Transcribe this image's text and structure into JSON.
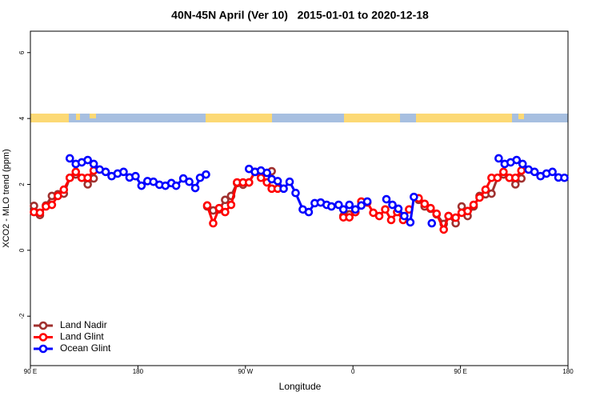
{
  "chart_data": {
    "type": "line",
    "title": "40N-45N April (Ver 10)   2015-01-01 to 2020-12-18",
    "x_label": "Longitude",
    "y_label": "XCO2 - MLO trend (ppm)",
    "xlim": [
      90,
      540
    ],
    "ylim": [
      -3.5,
      6.65
    ],
    "xticks": [
      {
        "value": 90,
        "label": "90 E"
      },
      180,
      {
        "value": 270,
        "label": "90 W"
      },
      {
        "value": 360,
        "label": "0"
      },
      {
        "value": 450,
        "label": "90 E"
      },
      {
        "value": 540,
        "label": "180"
      }
    ],
    "yticks": [
      -2,
      0,
      2,
      4,
      6
    ],
    "legend": "bottom-left",
    "series": [
      {
        "name": "Land Nadir",
        "color": "#a0312f",
        "x": [
          93,
          98,
          103,
          108,
          113,
          118,
          123,
          128,
          133,
          138,
          143,
          null,
          238,
          243,
          248,
          253,
          258,
          263,
          268,
          273,
          278,
          283,
          288,
          292,
          null,
          352,
          357,
          362,
          367,
          null,
          415,
          420,
          425,
          430,
          436,
          440,
          446,
          451,
          456,
          461,
          466,
          471,
          476,
          481,
          486,
          491,
          496,
          501
        ],
        "values": [
          1.35,
          1.07,
          1.36,
          1.65,
          1.7,
          1.72,
          2.2,
          2.3,
          2.2,
          2.0,
          2.18,
          null,
          1.33,
          1.21,
          1.24,
          1.53,
          1.65,
          2.04,
          1.99,
          2.06,
          2.38,
          2.3,
          2.2,
          2.4,
          null,
          1.04,
          1.09,
          1.16,
          1.38,
          null,
          1.53,
          1.33,
          1.26,
          1.09,
          0.8,
          1.04,
          0.82,
          1.33,
          1.04,
          1.33,
          1.65,
          1.7,
          1.72,
          2.2,
          2.3,
          2.2,
          2.0,
          2.18
        ]
      },
      {
        "name": "Land Glint",
        "color": "#ff0000",
        "x": [
          93,
          98,
          103,
          108,
          113,
          118,
          123,
          128,
          133,
          138,
          143,
          null,
          238,
          243,
          248,
          253,
          258,
          263,
          268,
          273,
          278,
          283,
          288,
          292,
          297,
          null,
          352,
          357,
          362,
          367,
          372,
          377,
          382,
          387,
          392,
          397,
          402,
          407,
          null,
          415,
          420,
          425,
          430,
          436,
          440,
          446,
          451,
          456,
          461,
          466,
          471,
          476,
          481,
          486,
          491,
          496,
          501
        ],
        "values": [
          1.16,
          1.14,
          1.33,
          1.38,
          1.65,
          1.84,
          2.2,
          2.38,
          2.2,
          2.2,
          2.42,
          null,
          1.36,
          0.82,
          1.28,
          1.16,
          1.38,
          2.06,
          2.06,
          2.06,
          2.38,
          2.2,
          2.06,
          1.87,
          1.87,
          null,
          1.0,
          1.0,
          1.16,
          1.48,
          1.45,
          1.14,
          1.04,
          1.24,
          0.92,
          1.16,
          0.92,
          1.24,
          null,
          1.58,
          1.41,
          1.28,
          1.11,
          0.63,
          1.04,
          0.99,
          1.14,
          1.19,
          1.38,
          1.6,
          1.84,
          2.2,
          2.2,
          2.38,
          2.2,
          2.2,
          2.42
        ]
      },
      {
        "name": "Ocean Glint",
        "color": "#0000ff",
        "x": [
          123,
          128,
          133,
          138,
          143,
          148,
          153,
          158,
          163,
          168,
          173,
          178,
          183,
          188,
          193,
          198,
          203,
          208,
          212,
          218,
          223,
          228,
          232,
          237,
          null,
          273,
          278,
          283,
          288,
          292,
          297,
          302,
          307,
          312,
          318,
          323,
          328,
          333,
          338,
          342,
          348,
          352,
          357,
          362,
          367,
          372,
          null,
          388,
          393,
          398,
          403,
          408,
          411,
          null,
          426,
          null,
          482,
          487,
          492,
          497,
          502,
          507,
          512,
          517,
          522,
          527,
          532,
          537
        ],
        "values": [
          2.79,
          2.62,
          2.67,
          2.74,
          2.62,
          2.45,
          2.38,
          2.25,
          2.33,
          2.38,
          2.21,
          2.25,
          1.96,
          2.1,
          2.08,
          1.99,
          1.96,
          2.04,
          1.96,
          2.18,
          2.08,
          1.89,
          2.2,
          2.3,
          null,
          2.47,
          2.38,
          2.42,
          2.35,
          2.16,
          2.1,
          1.87,
          2.08,
          1.74,
          1.24,
          1.16,
          1.43,
          1.45,
          1.38,
          1.33,
          1.38,
          1.24,
          1.38,
          1.24,
          1.36,
          1.48,
          null,
          1.55,
          1.38,
          1.26,
          1.04,
          0.85,
          1.62,
          null,
          0.82,
          null,
          2.79,
          2.62,
          2.67,
          2.74,
          2.62,
          2.45,
          2.38,
          2.25,
          2.33,
          2.38,
          2.21,
          2.2
        ]
      }
    ]
  }
}
